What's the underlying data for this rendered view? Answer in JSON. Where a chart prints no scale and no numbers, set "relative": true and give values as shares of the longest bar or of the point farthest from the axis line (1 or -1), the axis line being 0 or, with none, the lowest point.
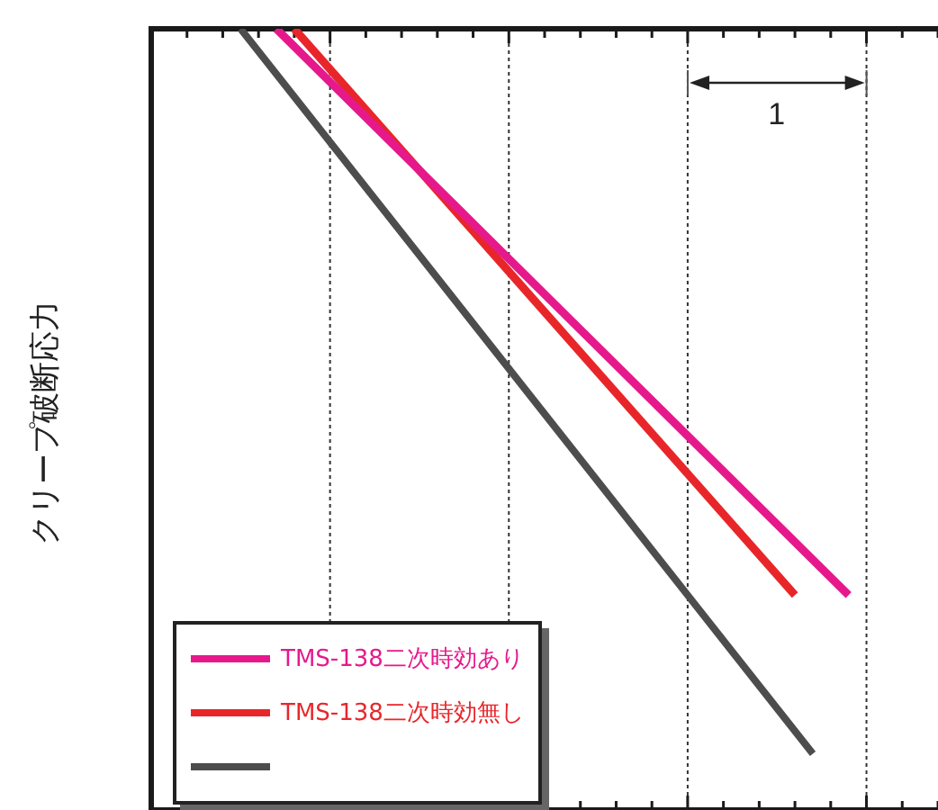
{
  "chart_data": {
    "type": "line",
    "ylabel": "クリープ破断応力",
    "relative": true,
    "categories": [
      null,
      null,
      null,
      null,
      null,
      null,
      null,
      null,
      null,
      null,
      null,
      null,
      null,
      null,
      null,
      null,
      null,
      null,
      null,
      null,
      null,
      null,
      null,
      null,
      null,
      null,
      null,
      null,
      null,
      null,
      null,
      null,
      null,
      null,
      null,
      null,
      null,
      null,
      null,
      null,
      null,
      null,
      null,
      null,
      null
    ],
    "grid": "x",
    "legend": "bottom left",
    "marker": "none",
    "line_style": "solid",
    "annotations": [
      "1"
    ],
    "series": [
      {
        "name": "TMS-138二次時効あり",
        "color": "#e6198c",
        "values": [
          null,
          null,
          null,
          null,
          null,
          null,
          null,
          1,
          null,
          null,
          null,
          null,
          null,
          null,
          null,
          null,
          null,
          null,
          null,
          null,
          null,
          null,
          null,
          null,
          null,
          null,
          null,
          null,
          null,
          null,
          null,
          null,
          null,
          null,
          null,
          null,
          null,
          null,
          null,
          0.275,
          null,
          null,
          null,
          null,
          null
        ]
      },
      {
        "name": "TMS-138二次時効無し",
        "color": "#e8262a",
        "values": [
          null,
          null,
          null,
          null,
          null,
          null,
          null,
          null,
          1,
          null,
          null,
          null,
          null,
          null,
          null,
          null,
          null,
          null,
          null,
          null,
          null,
          null,
          null,
          null,
          null,
          null,
          null,
          null,
          null,
          null,
          null,
          null,
          null,
          null,
          null,
          null,
          0.275,
          null,
          null,
          null,
          null,
          null,
          null,
          null,
          null
        ]
      },
      {
        "color": "#4d4d4d",
        "values": [
          null,
          null,
          null,
          null,
          null,
          1,
          null,
          null,
          null,
          null,
          null,
          null,
          null,
          null,
          null,
          null,
          null,
          null,
          null,
          null,
          null,
          null,
          null,
          null,
          null,
          null,
          null,
          null,
          null,
          null,
          null,
          null,
          null,
          null,
          null,
          null,
          null,
          0.072,
          null,
          null,
          null,
          null,
          null,
          null,
          null
        ]
      }
    ]
  }
}
